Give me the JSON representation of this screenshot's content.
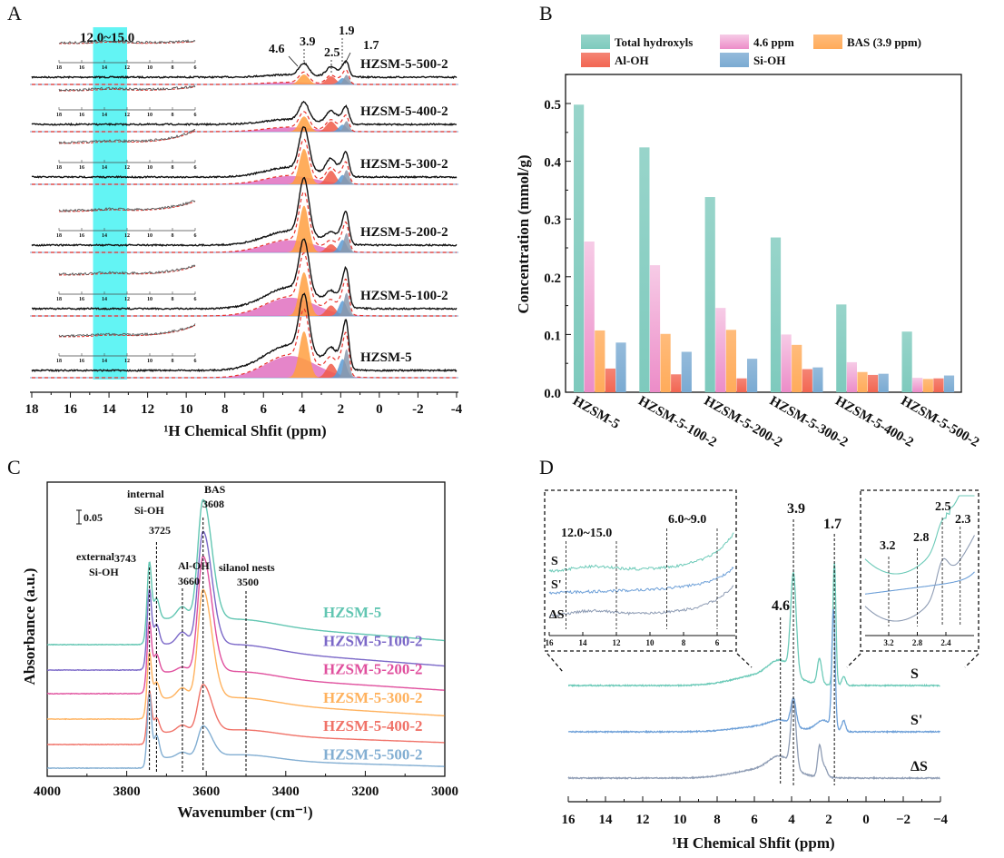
{
  "panels": {
    "A": "A",
    "B": "B",
    "C": "C",
    "D": "D"
  },
  "chart_data": [
    {
      "panel": "A",
      "type": "line",
      "xlabel": "¹H Chemical Shfit (ppm)",
      "xlim": [
        18,
        -4
      ],
      "xticks": [
        "18",
        "16",
        "14",
        "12",
        "10",
        "8",
        "6",
        "4",
        "2",
        "0",
        "-2",
        "-4"
      ],
      "series": [
        {
          "name": "HZSM-5-500-2"
        },
        {
          "name": "HZSM-5-400-2"
        },
        {
          "name": "HZSM-5-300-2"
        },
        {
          "name": "HZSM-5-200-2"
        },
        {
          "name": "HZSM-5-100-2"
        },
        {
          "name": "HZSM-5"
        }
      ],
      "peak_labels": [
        "4.6",
        "3.9",
        "2.5",
        "1.9",
        "1.7"
      ],
      "highlight": {
        "label": "12.0~15.0",
        "range": [
          15,
          12
        ],
        "color": "#2ff0f0"
      },
      "inset_xticks": [
        "18",
        "16",
        "14",
        "12",
        "10",
        "8",
        "6"
      ],
      "component_colors": {
        "4.6": "#e070c0",
        "3.9": "#ff9f40",
        "2.5": "#f05a48",
        "1.9": "#5b9bd5",
        "1.7": "#8a98ac"
      }
    },
    {
      "panel": "B",
      "type": "bar",
      "ylabel": "Concentration (mmol/g)",
      "ylim": [
        0,
        0.55
      ],
      "yticks": [
        "0.0",
        "0.1",
        "0.2",
        "0.3",
        "0.4",
        "0.5"
      ],
      "legend": "top",
      "categories": [
        "HZSM-5",
        "HZSM-5-100-2",
        "HZSM-5-200-2",
        "HZSM-5-300-2",
        "HZSM-5-400-2",
        "HZSM-5-500-2"
      ],
      "series": [
        {
          "name": "Total hydroxyls",
          "color": "#7ecabd",
          "values": [
            0.498,
            0.424,
            0.338,
            0.268,
            0.152,
            0.105
          ]
        },
        {
          "name": "4.6 ppm",
          "color": "#ec8cc8",
          "values": [
            0.261,
            0.22,
            0.146,
            0.1,
            0.052,
            0.025
          ]
        },
        {
          "name": "BAS (3.9 ppm)",
          "color": "#ffab5a",
          "values": [
            0.107,
            0.101,
            0.108,
            0.082,
            0.035,
            0.023
          ]
        },
        {
          "name": "Al-OH",
          "color": "#f26652",
          "values": [
            0.041,
            0.031,
            0.024,
            0.04,
            0.03,
            0.024
          ]
        },
        {
          "name": "Si-OH",
          "color": "#7aaad2",
          "values": [
            0.086,
            0.07,
            0.058,
            0.043,
            0.032,
            0.029
          ]
        }
      ]
    },
    {
      "panel": "C",
      "type": "line",
      "xlabel": "Wavenumber (cm⁻¹)",
      "ylabel": "Absorbance (a.u.)",
      "xlim": [
        4000,
        3000
      ],
      "xticks": [
        "4000",
        "3800",
        "3600",
        "3400",
        "3200",
        "3000"
      ],
      "scale_bar": "0.05",
      "annotations": [
        {
          "lines": [
            "external",
            "Si-OH"
          ],
          "position": 3743,
          "value": "3743"
        },
        {
          "lines": [
            "internal",
            "Si-OH"
          ],
          "position": 3725,
          "value": "3725"
        },
        {
          "lines": [
            "Al-OH"
          ],
          "position": 3660,
          "value": "3660"
        },
        {
          "lines": [
            "BAS"
          ],
          "position": 3608,
          "value": "3608"
        },
        {
          "lines": [
            "silanol nests"
          ],
          "position": 3500,
          "value": "3500"
        }
      ],
      "series": [
        {
          "name": "HZSM-5",
          "color": "#62c6b2"
        },
        {
          "name": "HZSM-5-100-2",
          "color": "#7b68c8"
        },
        {
          "name": "HZSM-5-200-2",
          "color": "#e0509e"
        },
        {
          "name": "HZSM-5-300-2",
          "color": "#ffb25e"
        },
        {
          "name": "HZSM-5-400-2",
          "color": "#f07268"
        },
        {
          "name": "HZSM-5-500-2",
          "color": "#82aed2"
        }
      ]
    },
    {
      "panel": "D",
      "type": "line",
      "xlabel": "¹H Chemical Shfit (ppm)",
      "xlim": [
        16,
        -4
      ],
      "xticks": [
        "16",
        "14",
        "12",
        "10",
        "8",
        "6",
        "4",
        "2",
        "0",
        "−2",
        "−4"
      ],
      "series": [
        {
          "name": "S",
          "color": "#6ccab8"
        },
        {
          "name": "S'",
          "color": "#6ea0d8"
        },
        {
          "name": "ΔS",
          "color": "#8e9cb4"
        }
      ],
      "peak_labels": [
        "4.6",
        "3.9",
        "1.7"
      ],
      "inset_left": {
        "xticks": [
          "16",
          "14",
          "12",
          "10",
          "8",
          "6"
        ],
        "labels": [
          "12.0~15.0",
          "6.0~9.0"
        ],
        "series_labels": [
          "S",
          "S'",
          "ΔS"
        ]
      },
      "inset_right": {
        "xticks": [
          "3.2",
          "2.8",
          "2.4"
        ],
        "labels": [
          "3.2",
          "2.8",
          "2.5",
          "2.3"
        ]
      }
    }
  ]
}
